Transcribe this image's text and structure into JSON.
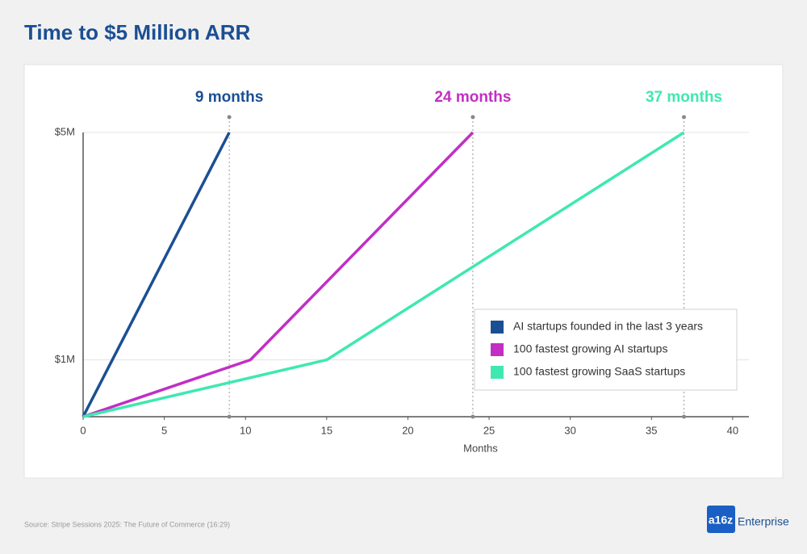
{
  "chart_data": {
    "type": "line",
    "title": "Time to $5 Million ARR",
    "xlabel": "Months",
    "xlim": [
      0,
      41
    ],
    "xticks": [
      0,
      5,
      10,
      15,
      20,
      25,
      30,
      35,
      40
    ],
    "ylim": [
      0,
      5
    ],
    "yticks": [
      {
        "value": 1,
        "label": "$1M"
      },
      {
        "value": 5,
        "label": "$5M"
      }
    ],
    "grid": true,
    "legend": "lower right",
    "series": [
      {
        "name": "AI startups founded in the last 3 years",
        "color": "#1b4f93",
        "x": [
          0,
          9
        ],
        "values": [
          0,
          5
        ]
      },
      {
        "name": "100 fastest growing AI startups",
        "color": "#c12fc4",
        "x": [
          0,
          10.3,
          24
        ],
        "values": [
          0,
          1,
          5
        ]
      },
      {
        "name": "100 fastest growing SaaS startups",
        "color": "#3fe8b1",
        "x": [
          0,
          15,
          37
        ],
        "values": [
          0,
          1,
          5
        ]
      }
    ],
    "annotations": [
      {
        "text": "9 months",
        "x": 9,
        "color": "#1b4f93"
      },
      {
        "text": "24 months",
        "x": 24,
        "color": "#c12fc4"
      },
      {
        "text": "37 months",
        "x": 37,
        "color": "#3fe8b1"
      }
    ],
    "source": "Source: Stripe Sessions 2025: The Future of Commerce (16:29)",
    "logo": {
      "mark": "a16z",
      "text": "Enterprise"
    }
  }
}
